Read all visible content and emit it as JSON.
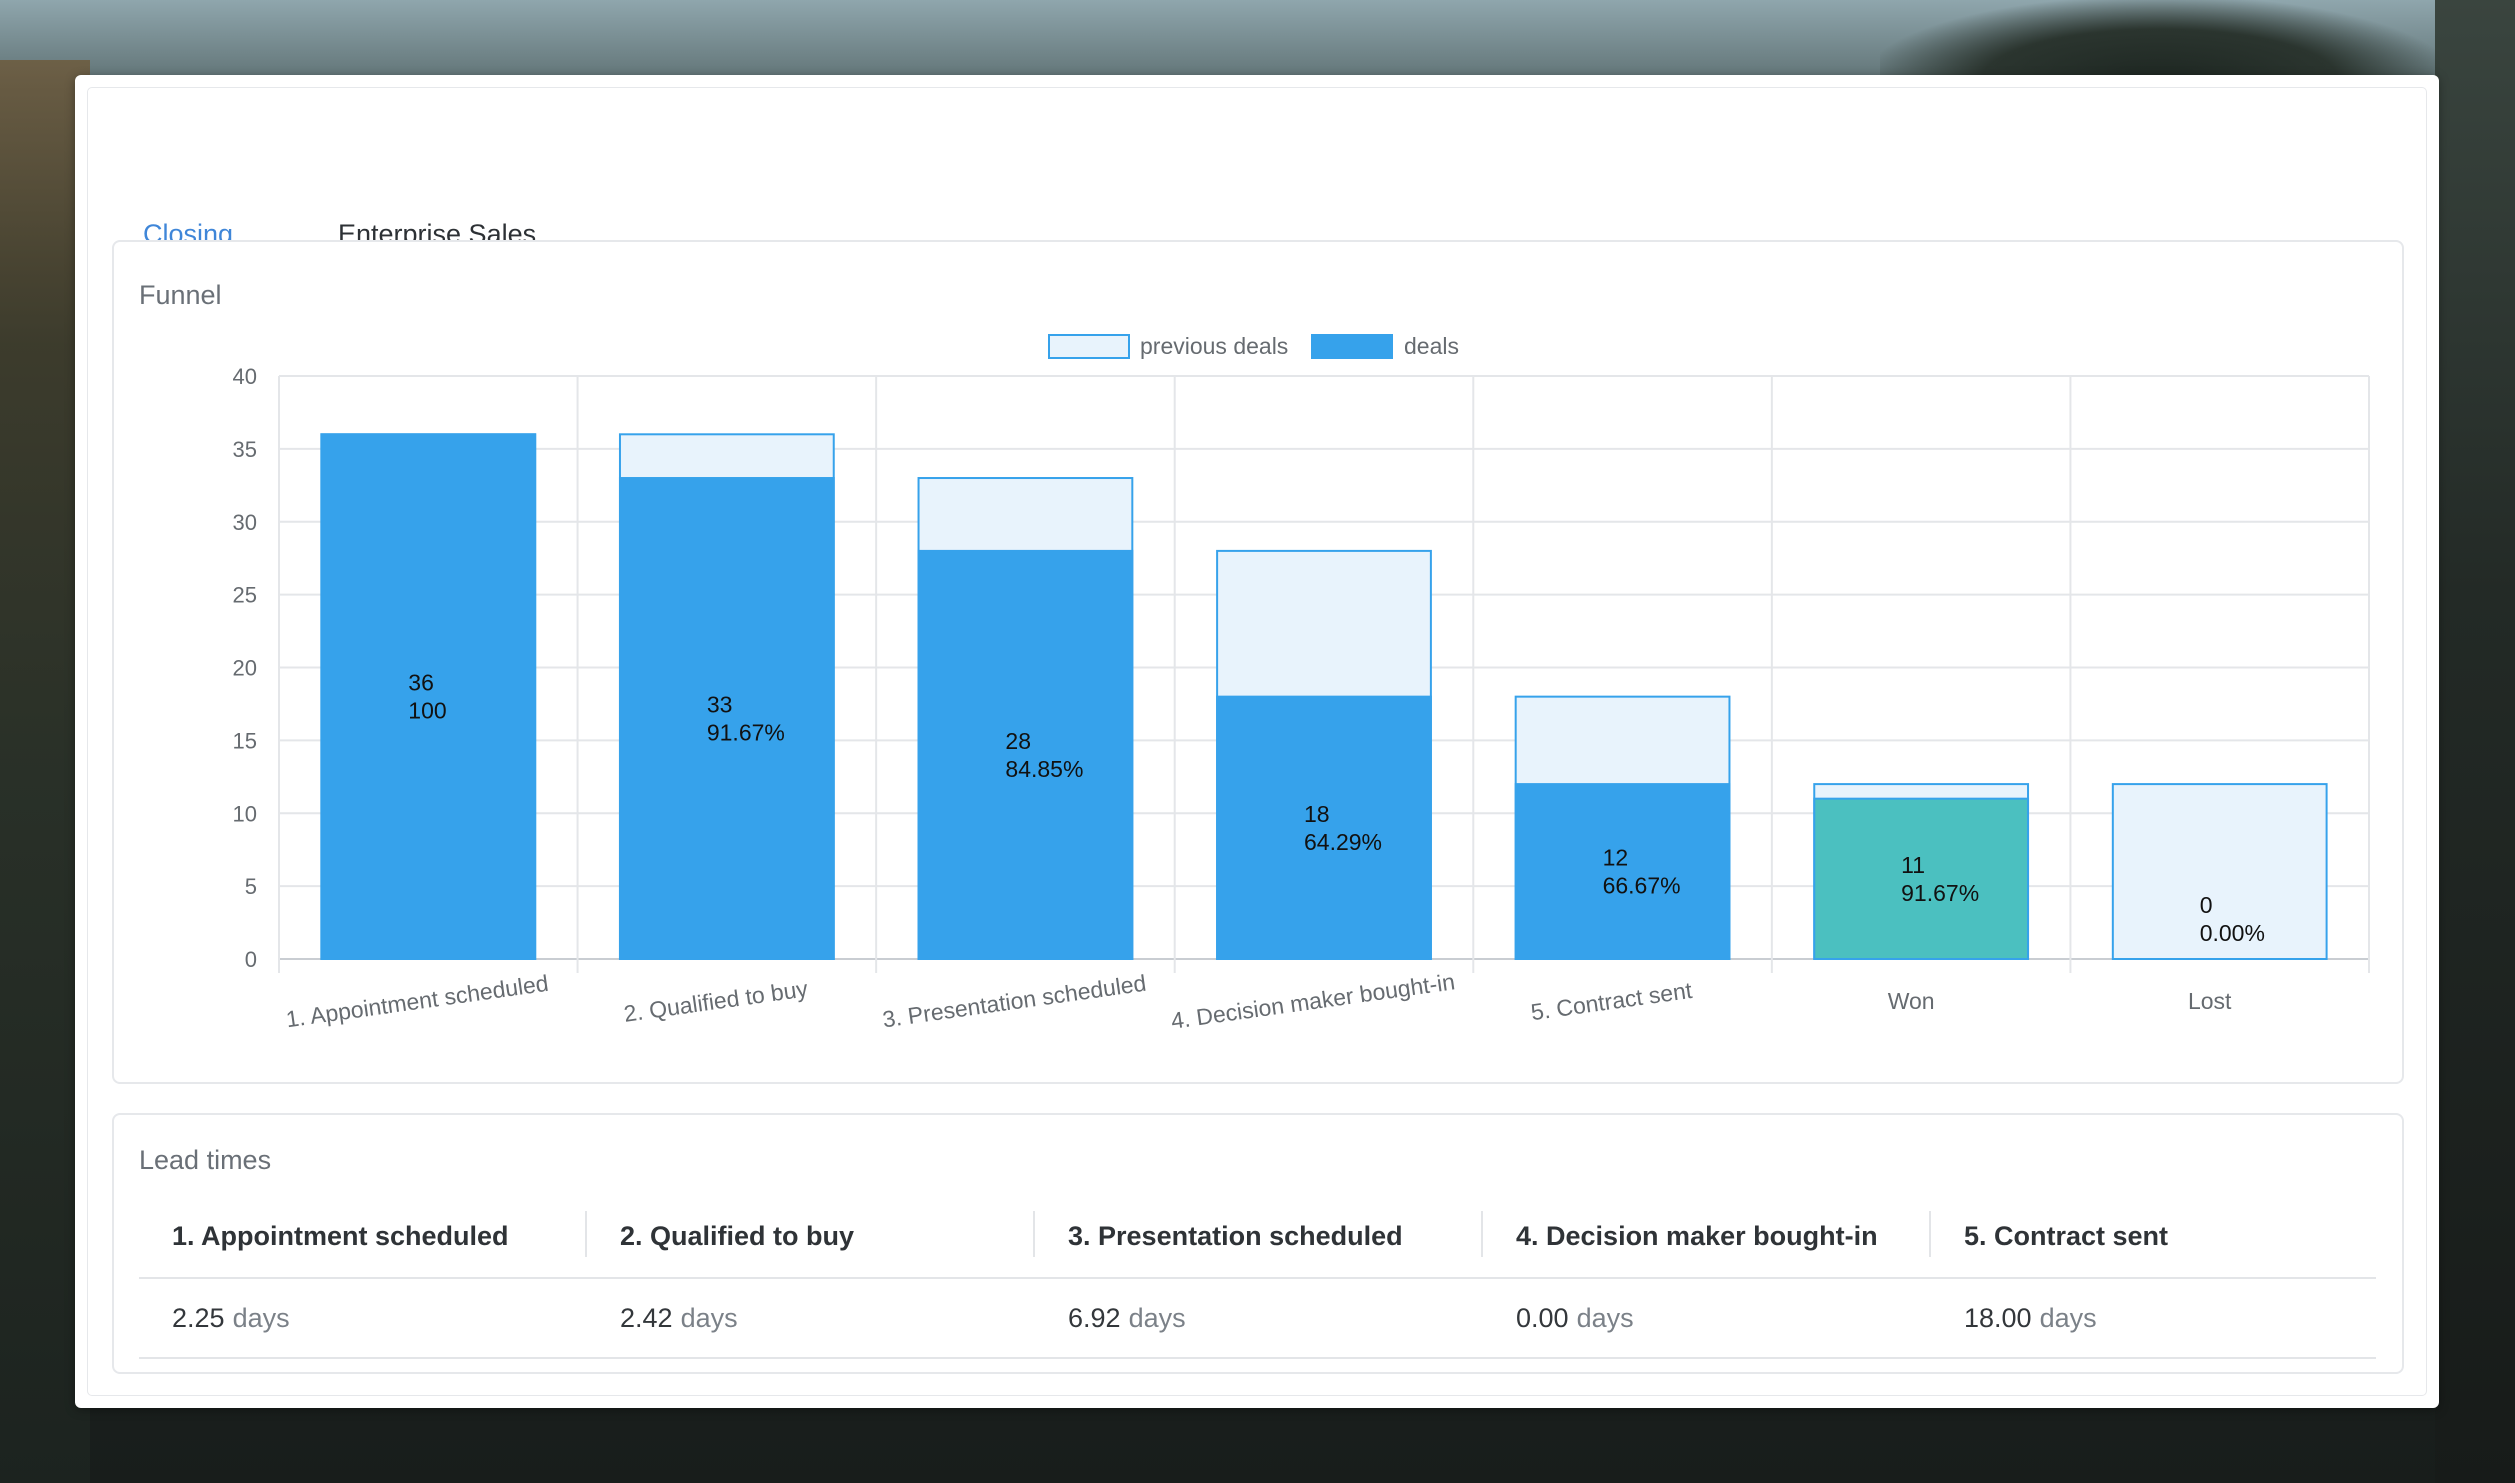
{
  "tabs": [
    {
      "label": "Closing",
      "active": true
    },
    {
      "label": "Enterprise Sales",
      "active": false
    }
  ],
  "funnel": {
    "title": "Funnel"
  },
  "chart_data": {
    "type": "bar",
    "categories": [
      "1. Appointment scheduled",
      "2. Qualified to buy",
      "3. Presentation scheduled",
      "4. Decision maker bought-in",
      "5. Contract sent",
      "Won",
      "Lost"
    ],
    "series": [
      {
        "name": "previous deals",
        "values": [
          36,
          36,
          33,
          28,
          18,
          12,
          12
        ],
        "color": "#e8f3fc",
        "stroke": "#36a2eb"
      },
      {
        "name": "deals",
        "values": [
          36,
          33,
          28,
          18,
          12,
          11,
          0
        ],
        "color": "#36a2eb",
        "won_color": "#4bc0c0"
      }
    ],
    "data_labels": [
      {
        "count": "36",
        "pct": "100"
      },
      {
        "count": "33",
        "pct": "91.67%"
      },
      {
        "count": "28",
        "pct": "84.85%"
      },
      {
        "count": "18",
        "pct": "64.29%"
      },
      {
        "count": "12",
        "pct": "66.67%"
      },
      {
        "count": "11",
        "pct": "91.67%"
      },
      {
        "count": "0",
        "pct": "0.00%"
      }
    ],
    "yticks": [
      0,
      5,
      10,
      15,
      20,
      25,
      30,
      35,
      40
    ],
    "ylim": [
      0,
      40
    ],
    "grid": true,
    "legend": "top-center",
    "stacked": "overlay"
  },
  "lead_times": {
    "title": "Lead times",
    "unit": "days",
    "columns": [
      {
        "stage": "1. Appointment scheduled",
        "value": "2.25"
      },
      {
        "stage": "2. Qualified to buy",
        "value": "2.42"
      },
      {
        "stage": "3. Presentation scheduled",
        "value": "6.92"
      },
      {
        "stage": "4. Decision maker bought-in",
        "value": "0.00"
      },
      {
        "stage": "5. Contract sent",
        "value": "18.00"
      }
    ]
  }
}
